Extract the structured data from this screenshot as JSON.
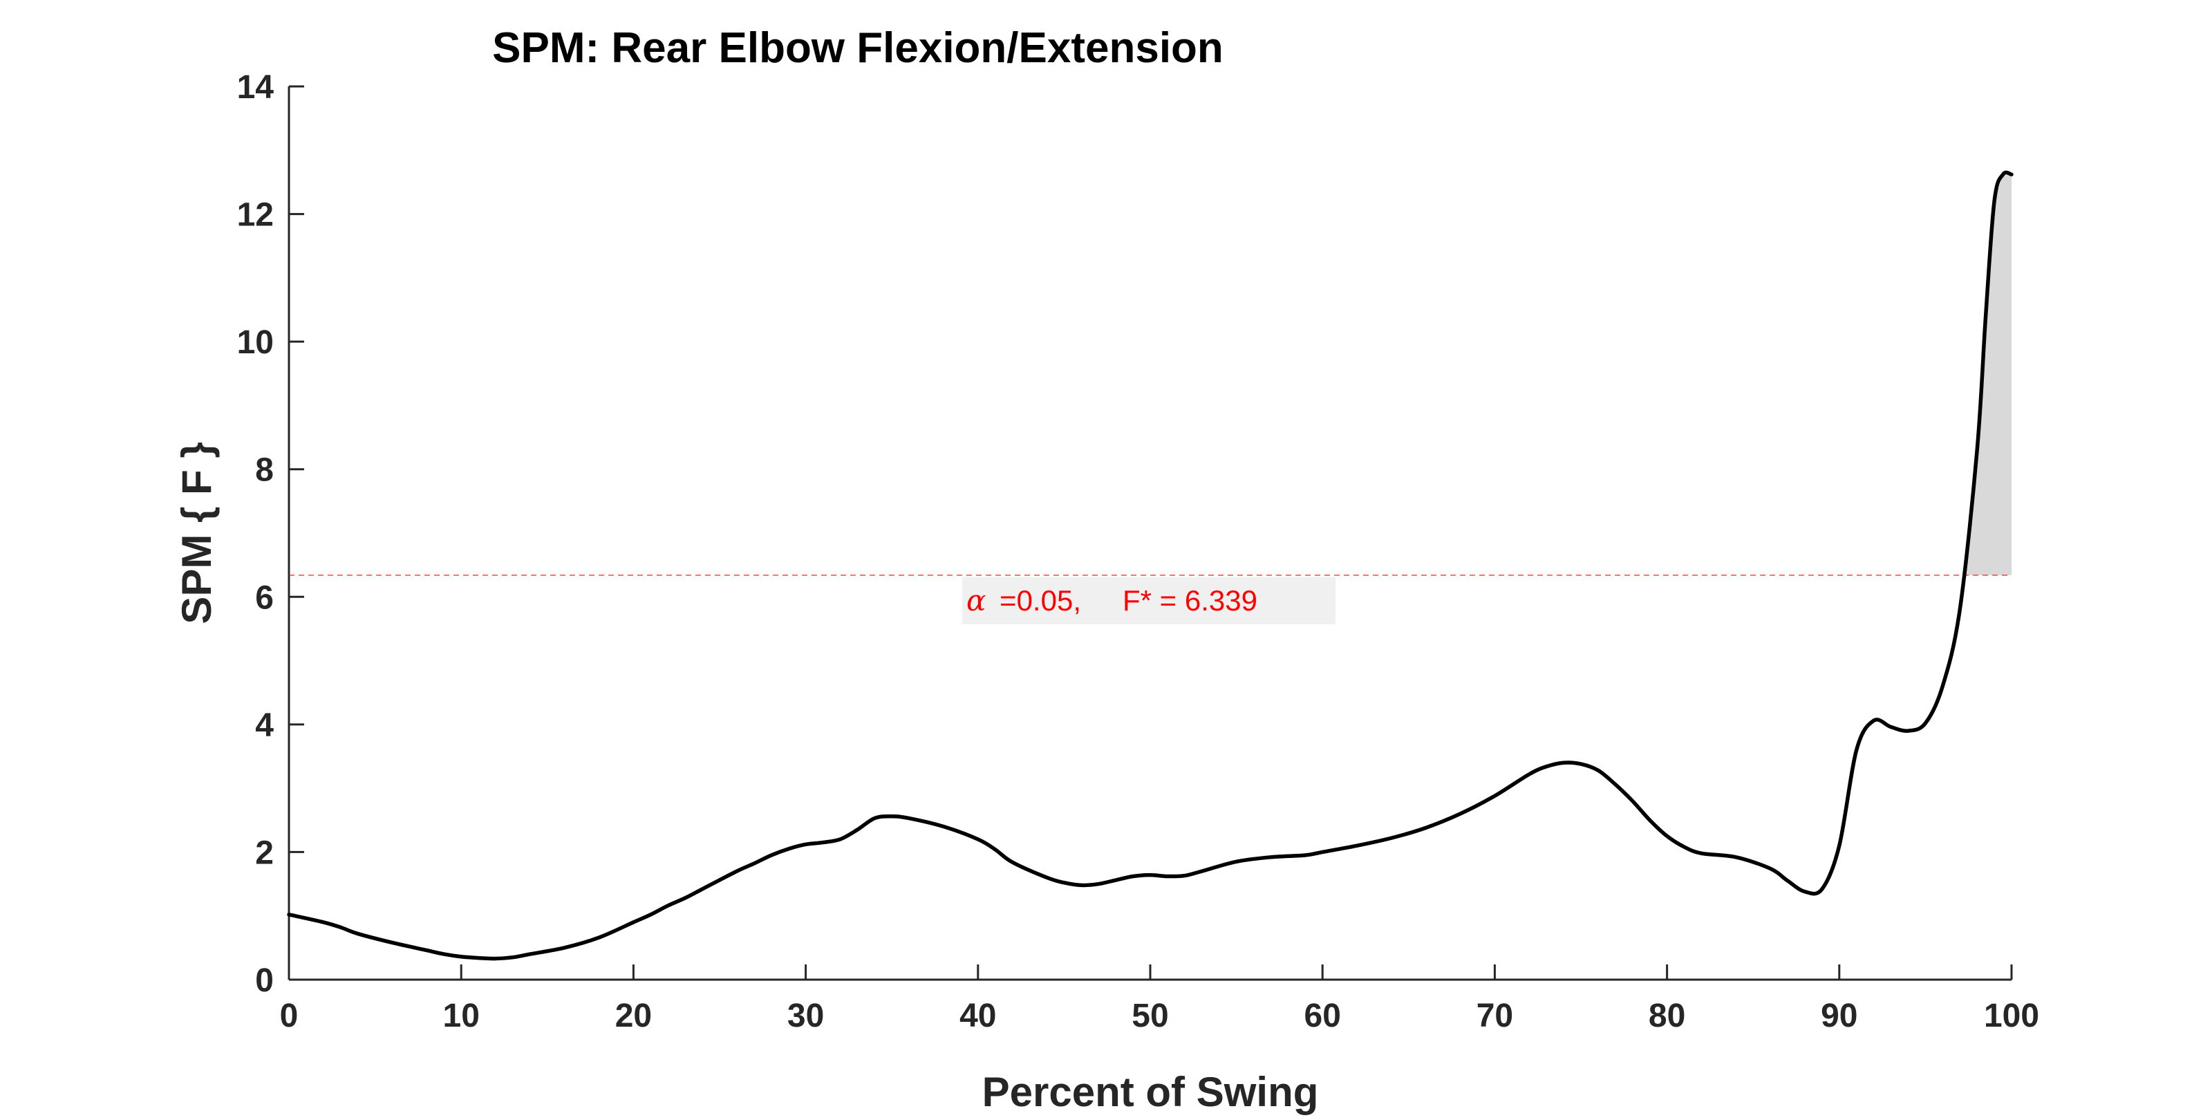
{
  "chart_data": {
    "type": "line",
    "title": "SPM: Rear Elbow Flexion/Extension",
    "xlabel": "Percent of Swing",
    "ylabel": "SPM { F }",
    "xlim": [
      0,
      100
    ],
    "ylim": [
      0,
      14
    ],
    "xticks": [
      "0",
      "10",
      "20",
      "30",
      "40",
      "50",
      "60",
      "70",
      "80",
      "90",
      "100"
    ],
    "yticks": [
      "0",
      "2",
      "4",
      "6",
      "8",
      "10",
      "12",
      "14"
    ],
    "grid": false,
    "series": [
      {
        "color": "#000000",
        "x": [
          0,
          2,
          3,
          4,
          6,
          8,
          9,
          10,
          11,
          12,
          13,
          14,
          16,
          18,
          20,
          21,
          22,
          23,
          24,
          26,
          27,
          28,
          29,
          30,
          31,
          32,
          33,
          34,
          35,
          36,
          38,
          40,
          41,
          42,
          44,
          45,
          46,
          47,
          48,
          49,
          50,
          51,
          52,
          53,
          55,
          57,
          59,
          60,
          62,
          64,
          66,
          68,
          70,
          72,
          73,
          74,
          75,
          76,
          77,
          78,
          79,
          80,
          81,
          82,
          84,
          86,
          87,
          88,
          89,
          90,
          91,
          92,
          93,
          94,
          95,
          96,
          97,
          98,
          98.5,
          99,
          99.5,
          100
        ],
        "y": [
          1.02,
          0.9,
          0.82,
          0.72,
          0.58,
          0.46,
          0.4,
          0.36,
          0.34,
          0.33,
          0.35,
          0.4,
          0.5,
          0.66,
          0.9,
          1.02,
          1.16,
          1.28,
          1.42,
          1.7,
          1.82,
          1.95,
          2.05,
          2.12,
          2.15,
          2.2,
          2.35,
          2.53,
          2.56,
          2.53,
          2.4,
          2.2,
          2.04,
          1.84,
          1.6,
          1.52,
          1.48,
          1.5,
          1.56,
          1.62,
          1.64,
          1.62,
          1.63,
          1.7,
          1.85,
          1.92,
          1.95,
          2.0,
          2.1,
          2.22,
          2.38,
          2.6,
          2.88,
          3.22,
          3.34,
          3.4,
          3.38,
          3.28,
          3.06,
          2.8,
          2.5,
          2.25,
          2.08,
          1.98,
          1.92,
          1.74,
          1.55,
          1.38,
          1.42,
          2.1,
          3.6,
          4.06,
          3.96,
          3.9,
          4.02,
          4.6,
          5.8,
          8.3,
          10.4,
          12.2,
          12.62,
          12.62
        ]
      }
    ],
    "threshold": {
      "y": 6.339,
      "color": "#ff0000",
      "label_alpha_symbol": "α",
      "label_alpha": " =0.05,",
      "label_fstar": "F* = 6.339"
    },
    "shaded_region": {
      "x_start": 97.3,
      "x_end": 100,
      "fill": "#d9d9d9"
    }
  }
}
